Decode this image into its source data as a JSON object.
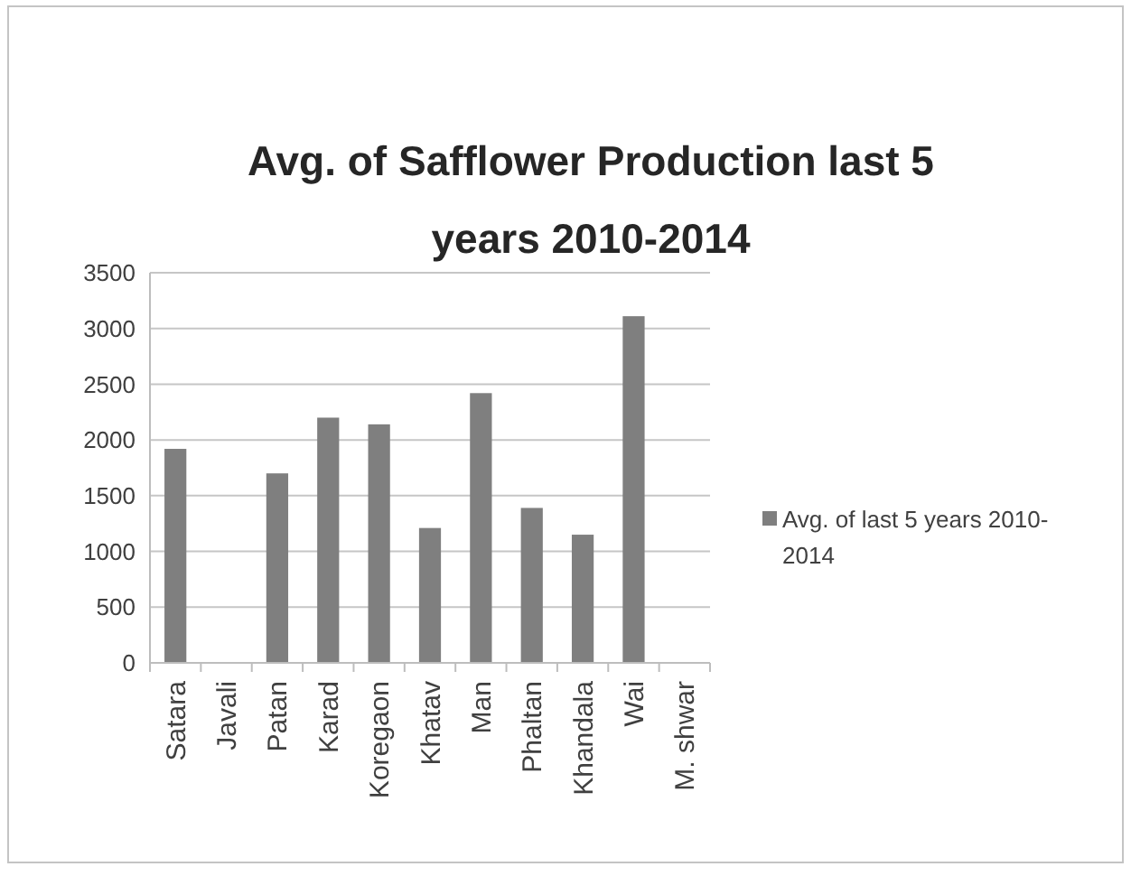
{
  "chart_data": {
    "type": "bar",
    "title": "Avg. of Safflower Production last 5 years 2010-2014",
    "categories": [
      "Satara",
      "Javali",
      "Patan",
      "Karad",
      "Koregaon",
      "Khatav",
      "Man",
      "Phaltan",
      "Khandala",
      "Wai",
      "M. shwar"
    ],
    "series": [
      {
        "name": "Avg. of last 5 years 2010-2014",
        "color": "#7f7f7f",
        "values": [
          1920,
          null,
          1700,
          2200,
          2140,
          1210,
          2420,
          1390,
          1150,
          3110,
          null
        ]
      }
    ],
    "ylim": [
      0,
      3500
    ],
    "yticks": [
      0,
      500,
      1000,
      1500,
      2000,
      2500,
      3000,
      3500
    ],
    "grid": "y",
    "legend": "right"
  }
}
